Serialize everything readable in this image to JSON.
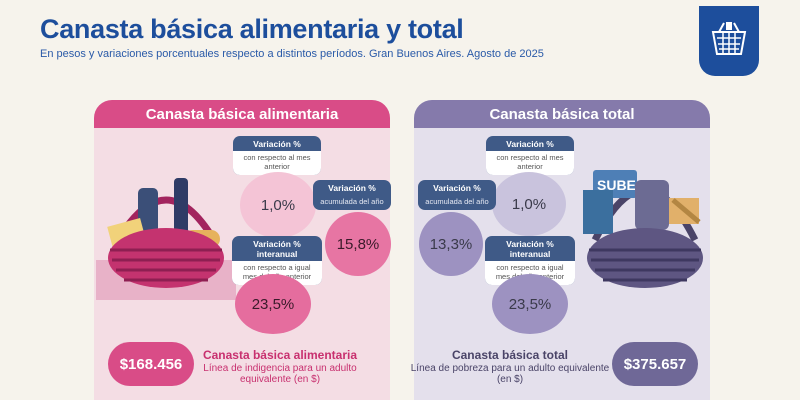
{
  "header": {
    "title": "Canasta básica alimentaria y total",
    "subtitle": "En pesos y variaciones porcentuales respecto a distintos períodos. Gran Buenos Aires. Agosto de 2025"
  },
  "logo": {
    "icon": "basket-icon"
  },
  "left_panel": {
    "title": "Canasta básica alimentaria",
    "monthly": {
      "label": "Variación %",
      "sub": "con respecto al mes anterior",
      "value": "1,0%"
    },
    "ytd": {
      "label": "Variación %",
      "sub": "acumulada del año",
      "value": "15,8%"
    },
    "yoy": {
      "label": "Variación % interanual",
      "sub": "con respecto a igual mes del año anterior",
      "value": "23,5%"
    },
    "price": "$168.456",
    "bottom_title": "Canasta básica alimentaria",
    "bottom_sub": "Línea de indigencia para un adulto equivalente (en $)",
    "accent": "#d94c87"
  },
  "right_panel": {
    "title": "Canasta básica total",
    "ytd": {
      "label": "Variación %",
      "sub": "acumulada del año",
      "value": "13,3%"
    },
    "monthly": {
      "label": "Variación %",
      "sub": "con respecto al mes anterior",
      "value": "1,0%"
    },
    "yoy": {
      "label": "Variación % interanual",
      "sub": "con respecto a igual mes del año anterior",
      "value": "23,5%"
    },
    "price": "$375.657",
    "bottom_title": "Canasta básica total",
    "bottom_sub": "Línea de pobreza para un adulto equivalente (en $)",
    "accent": "#857aab",
    "sube_label": "SUBE"
  }
}
